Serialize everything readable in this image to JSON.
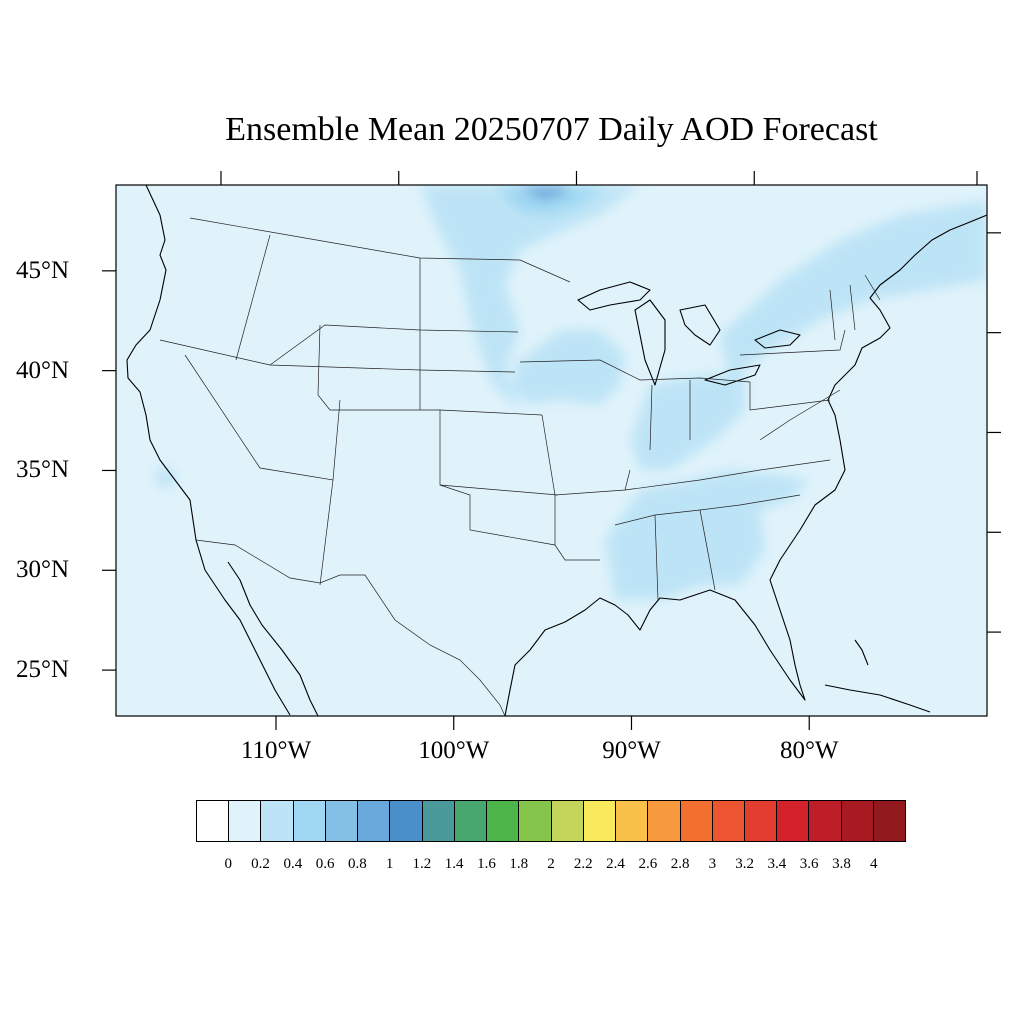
{
  "title": "Ensemble Mean 20250707 Daily AOD Forecast",
  "map": {
    "region": "Contiguous United States",
    "lon_range": [
      -119,
      -70
    ],
    "lat_range": [
      22.7,
      49.3
    ],
    "lat_ticks": [
      {
        "value": 45,
        "label": "45°N"
      },
      {
        "value": 40,
        "label": "40°N"
      },
      {
        "value": 35,
        "label": "35°N"
      },
      {
        "value": 30,
        "label": "30°N"
      },
      {
        "value": 25,
        "label": "25°N"
      }
    ],
    "lon_ticks": [
      {
        "value": -110,
        "label": "110°W"
      },
      {
        "value": -100,
        "label": "100°W"
      },
      {
        "value": -90,
        "label": "90°W"
      },
      {
        "value": -80,
        "label": "80°W"
      }
    ],
    "background_level_color": "#e0f3fb",
    "ocean_color": "#e0f3fb",
    "line_color": "#000000"
  },
  "aod_field": {
    "variable": "AOD",
    "features": [
      {
        "id": "canada-smoke-plume",
        "level": 0.4,
        "color": "#bde4f6"
      },
      {
        "id": "canada-smoke-core",
        "level": 0.6,
        "color": "#a0d8f3"
      },
      {
        "id": "canada-smoke-peak",
        "level": 1.0,
        "color": "#6aa9db"
      },
      {
        "id": "midwest-band",
        "level": 0.4,
        "color": "#bde4f6"
      },
      {
        "id": "northeast-band",
        "level": 0.4,
        "color": "#bde4f6"
      },
      {
        "id": "ohio-valley-band",
        "level": 0.4,
        "color": "#bde4f6"
      },
      {
        "id": "southeast-band",
        "level": 0.4,
        "color": "#bde4f6"
      },
      {
        "id": "california-spot",
        "level": 0.4,
        "color": "#bde4f6"
      }
    ]
  },
  "colorbar": {
    "colors": [
      "#ffffff",
      "#e0f3fb",
      "#bde4f6",
      "#a0d8f3",
      "#84c0e6",
      "#6aa9db",
      "#4a8fca",
      "#4a9a9c",
      "#48a76f",
      "#4cb449",
      "#86c54c",
      "#c3d55a",
      "#f7e85c",
      "#f9c04a",
      "#f79a3e",
      "#f36f30",
      "#ec5530",
      "#e23d2e",
      "#d4222b",
      "#bd1d26",
      "#a81a22",
      "#921a1e"
    ],
    "tick_labels": [
      "0",
      "0.2",
      "0.4",
      "0.6",
      "0.8",
      "1",
      "1.2",
      "1.4",
      "1.6",
      "1.8",
      "2",
      "2.2",
      "2.4",
      "2.6",
      "2.8",
      "3",
      "3.2",
      "3.4",
      "3.6",
      "3.8",
      "4"
    ]
  }
}
